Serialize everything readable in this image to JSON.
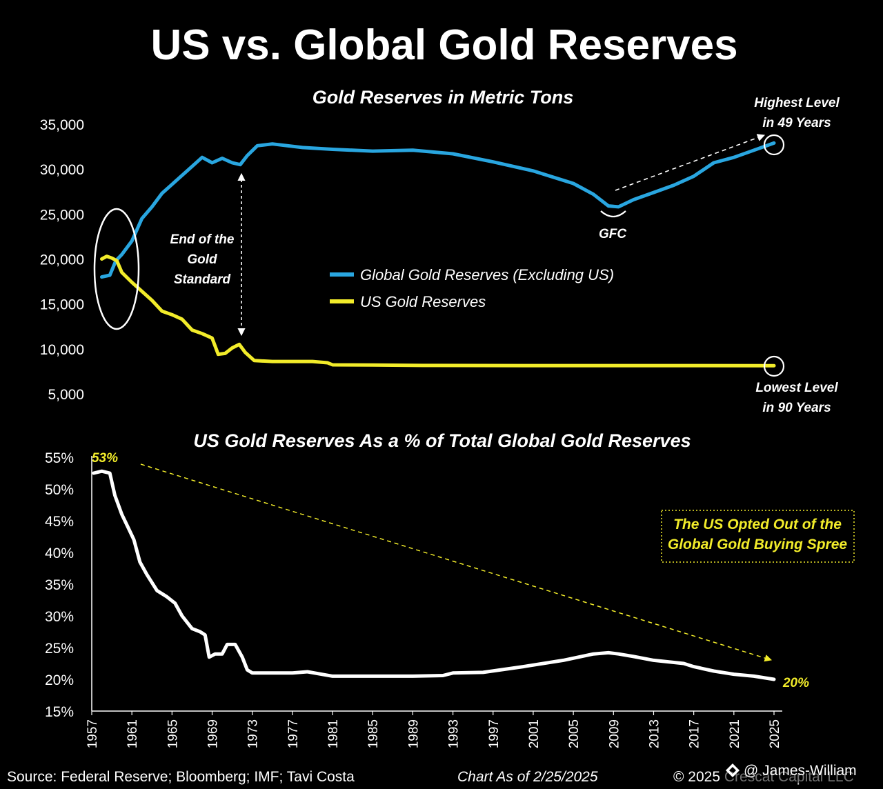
{
  "title": "US vs. Global Gold Reserves",
  "colors": {
    "global": "#29a6e0",
    "us": "#f2ec2a",
    "pct": "#ffffff",
    "background": "#000000"
  },
  "chart_data": [
    {
      "type": "line",
      "title": "Gold Reserves in Metric Tons",
      "ylim": [
        5000,
        35000
      ],
      "yticks": [
        5000,
        10000,
        15000,
        20000,
        25000,
        30000,
        35000
      ],
      "ytick_labels": [
        "5,000",
        "10,000",
        "15,000",
        "20,000",
        "25,000",
        "30,000",
        "35,000"
      ],
      "legend_position": "center",
      "series": [
        {
          "name": "Global Gold Reserves (Excluding US)",
          "color": "#29a6e0",
          "x": [
            1958.0,
            1958.8,
            1959.4,
            1960,
            1961,
            1962,
            1963,
            1964,
            1965,
            1966,
            1967,
            1968,
            1969,
            1970,
            1971,
            1971.8,
            1972.5,
            1973.5,
            1975,
            1978,
            1981,
            1985,
            1989,
            1993,
            1997,
            2001,
            2005,
            2007,
            2008.5,
            2009.5,
            2011,
            2013,
            2015,
            2017,
            2019,
            2021,
            2023,
            2025
          ],
          "y": [
            18000,
            18200,
            19800,
            20500,
            22000,
            24500,
            25800,
            27300,
            28300,
            29300,
            30300,
            31300,
            30700,
            31200,
            30700,
            30500,
            31500,
            32600,
            32800,
            32400,
            32200,
            32000,
            32100,
            31700,
            30800,
            29800,
            28400,
            27200,
            25900,
            25800,
            26600,
            27400,
            28200,
            29200,
            30700,
            31300,
            32100,
            32900
          ]
        },
        {
          "name": "US Gold Reserves",
          "color": "#f2ec2a",
          "x": [
            1958.0,
            1958.5,
            1959.0,
            1959.5,
            1960,
            1961,
            1962,
            1963,
            1964,
            1965,
            1966,
            1967,
            1968,
            1969,
            1969.6,
            1970.3,
            1971,
            1971.7,
            1972.3,
            1973.2,
            1975,
            1977,
            1979,
            1980.5,
            1981,
            1985,
            1990,
            2000,
            2010,
            2025
          ],
          "y": [
            20000,
            20300,
            20100,
            19800,
            18500,
            17400,
            16400,
            15400,
            14200,
            13800,
            13300,
            12100,
            11700,
            11200,
            9400,
            9500,
            10100,
            10500,
            9600,
            8700,
            8600,
            8600,
            8600,
            8450,
            8220,
            8200,
            8150,
            8140,
            8135,
            8133
          ]
        }
      ],
      "annotations": {
        "end_gold_standard": [
          "End of the",
          "Gold",
          "Standard"
        ],
        "gfc": "GFC",
        "highest": [
          "Highest Level",
          "in 49 Years"
        ],
        "lowest": [
          "Lowest Level",
          "in 90 Years"
        ]
      }
    },
    {
      "type": "line",
      "title": "US Gold Reserves As a % of Total Global Gold Reserves",
      "ylim": [
        15,
        55
      ],
      "yticks": [
        15,
        20,
        25,
        30,
        35,
        40,
        45,
        50,
        55
      ],
      "ytick_labels": [
        "15%",
        "20%",
        "25%",
        "30%",
        "35%",
        "40%",
        "45%",
        "50%",
        "55%"
      ],
      "xticks": [
        1957,
        1961,
        1965,
        1969,
        1973,
        1977,
        1981,
        1985,
        1989,
        1993,
        1997,
        2001,
        2005,
        2009,
        2013,
        2017,
        2021,
        2025
      ],
      "xlim": [
        1957,
        2025
      ],
      "series": [
        {
          "color": "#ffffff",
          "x": [
            1957.2,
            1958,
            1958.8,
            1959.3,
            1960,
            1960.6,
            1961.2,
            1961.8,
            1962.5,
            1963.5,
            1964.5,
            1965.3,
            1966,
            1967,
            1967.8,
            1968.3,
            1968.7,
            1969.3,
            1970,
            1970.5,
            1971.3,
            1972,
            1972.5,
            1973,
            1977,
            1978.5,
            1981,
            1985,
            1989,
            1992,
            1993,
            1996,
            2000,
            2004,
            2007,
            2008.5,
            2009.5,
            2011,
            2013,
            2016,
            2017,
            2019,
            2021,
            2023,
            2025
          ],
          "y": [
            52.5,
            52.8,
            52.5,
            49,
            46,
            44,
            42,
            38.5,
            36.5,
            34,
            33,
            32,
            30,
            28,
            27.5,
            27,
            23.5,
            24,
            24,
            25.5,
            25.5,
            23.5,
            21.5,
            21,
            21,
            21.2,
            20.5,
            20.5,
            20.5,
            20.6,
            21,
            21.1,
            22,
            23,
            24,
            24.2,
            24,
            23.6,
            23,
            22.5,
            22,
            21.3,
            20.8,
            20.5,
            20
          ]
        }
      ],
      "annotations": {
        "start_label": "53%",
        "end_label": "20%",
        "callout": [
          "The US Opted Out of the",
          "Global Gold Buying Spree"
        ]
      }
    }
  ],
  "footer": {
    "source": "Source: Federal Reserve; Bloomberg; IMF; Tavi Costa",
    "asof": "Chart As of 2/25/2025",
    "copyright": "© 2025 Crescat Capital LLC",
    "watermark": "@ James-William"
  }
}
